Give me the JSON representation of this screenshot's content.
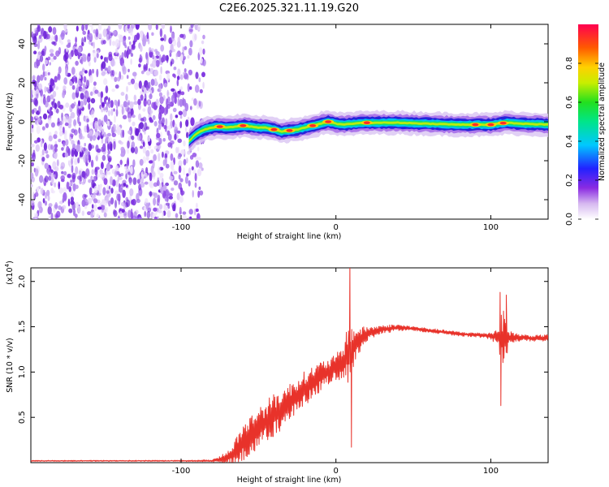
{
  "title": "C2E6.2025.321.11.19.G20",
  "chart_data": [
    {
      "type": "heatmap",
      "xlabel": "Height of straight line (km)",
      "ylabel": "Frequency (Hz)",
      "xlim": [
        -197,
        137
      ],
      "ylim": [
        -50,
        50
      ],
      "x_ticks": [
        -100,
        0,
        100
      ],
      "x_tick_labels": [
        "-100",
        "0",
        "100"
      ],
      "y_ticks": [
        -40,
        -20,
        0,
        20,
        40
      ],
      "y_tick_labels": [
        "-40",
        "-20",
        "0",
        "20",
        "40"
      ],
      "colorbar": {
        "label": "Normalized spectral amplitude",
        "range": [
          0,
          1
        ],
        "ticks": [
          0.0,
          0.2,
          0.4,
          0.6,
          0.8
        ],
        "tick_labels": [
          "0.0",
          "0.2",
          "0.4",
          "0.6",
          "0.8"
        ]
      },
      "noise_region_x": [
        -197,
        -85
      ],
      "ridge": {
        "x": [
          -95,
          -90,
          -85,
          -80,
          -75,
          -70,
          -65,
          -60,
          -55,
          -50,
          -45,
          -40,
          -35,
          -30,
          -25,
          -20,
          -15,
          -10,
          -5,
          0,
          5,
          10,
          20,
          30,
          40,
          60,
          80,
          100,
          110,
          120,
          137
        ],
        "freq": [
          -10,
          -6,
          -4,
          -3,
          -2.5,
          -3,
          -2.5,
          -2,
          -2.5,
          -3,
          -3,
          -4,
          -5,
          -4.5,
          -4,
          -3,
          -2,
          -1,
          0,
          -1,
          -1.5,
          -1,
          -0.5,
          -0.5,
          -0.5,
          -1,
          -1.5,
          -1.5,
          -0.5,
          -1,
          -1.5
        ],
        "peak_amplitude_at_x": [
          -75,
          -60,
          -40,
          -30,
          -15,
          -5,
          20,
          90,
          100,
          108
        ]
      }
    },
    {
      "type": "line",
      "xlabel": "Height of straight line (km)",
      "ylabel": "SNR (10 * v/v)",
      "y_scale_label": "(x10",
      "y_scale_exponent": "4",
      "xlim": [
        -197,
        137
      ],
      "ylim": [
        0,
        2.15
      ],
      "x_ticks": [
        -100,
        0,
        100
      ],
      "x_tick_labels": [
        "-100",
        "0",
        "100"
      ],
      "y_ticks": [
        0.5,
        1.0,
        1.5,
        2.0
      ],
      "y_tick_labels": [
        "0.5",
        "1.0",
        "1.5",
        "2.0"
      ],
      "series": [
        {
          "name": "SNR",
          "color": "#e8322a",
          "x": [
            -197,
            -100,
            -80,
            -70,
            -65,
            -60,
            -50,
            -40,
            -30,
            -20,
            -10,
            -5,
            0,
            5,
            8,
            10,
            15,
            20,
            30,
            40,
            50,
            60,
            70,
            80,
            90,
            100,
            105,
            108,
            112,
            120,
            130,
            137
          ],
          "y": [
            0.02,
            0.02,
            0.02,
            0.05,
            0.12,
            0.22,
            0.38,
            0.52,
            0.66,
            0.82,
            0.95,
            1.0,
            1.05,
            1.12,
            1.2,
            1.25,
            1.35,
            1.42,
            1.47,
            1.49,
            1.48,
            1.46,
            1.44,
            1.42,
            1.41,
            1.4,
            1.38,
            1.36,
            1.38,
            1.38,
            1.37,
            1.38
          ],
          "spread": [
            0.005,
            0.005,
            0.01,
            0.06,
            0.12,
            0.18,
            0.2,
            0.2,
            0.18,
            0.16,
            0.14,
            0.12,
            0.12,
            0.16,
            0.3,
            0.22,
            0.12,
            0.07,
            0.04,
            0.03,
            0.02,
            0.02,
            0.02,
            0.02,
            0.02,
            0.03,
            0.1,
            0.3,
            0.06,
            0.03,
            0.03,
            0.03
          ],
          "spikes": [
            {
              "x": 9,
              "y": 2.2
            },
            {
              "x": 10,
              "y": 0.17
            },
            {
              "x": 106,
              "y": 1.88
            },
            {
              "x": 106.5,
              "y": 0.63
            },
            {
              "x": 110,
              "y": 1.85
            }
          ]
        }
      ]
    }
  ]
}
